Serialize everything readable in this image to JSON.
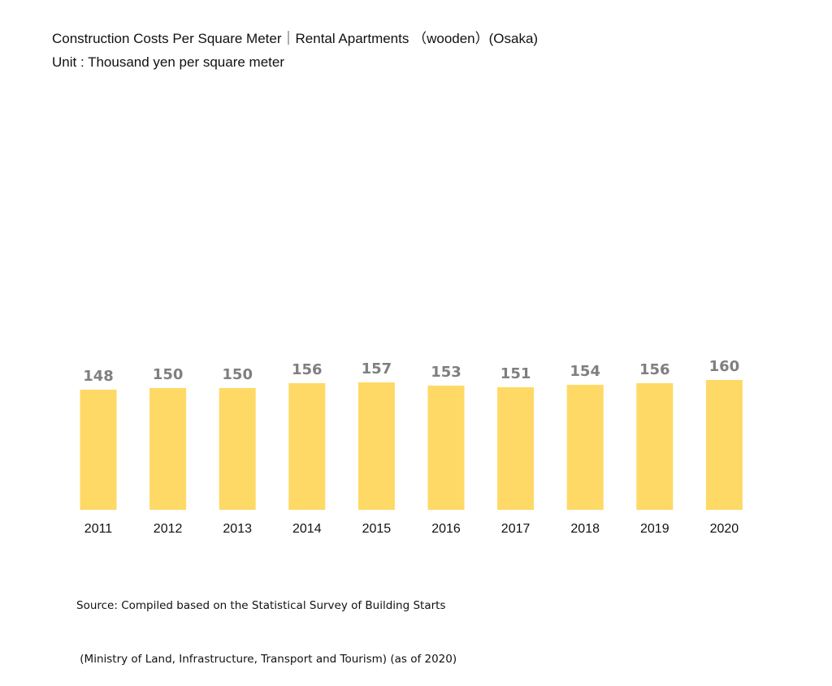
{
  "chart_data": {
    "type": "bar",
    "title": "Construction Costs Per Square Meter｜Rental Apartments （wooden）(Osaka)",
    "subtitle": "Unit : Thousand yen per square meter",
    "categories": [
      "2011",
      "2012",
      "2013",
      "2014",
      "2015",
      "2016",
      "2017",
      "2018",
      "2019",
      "2020"
    ],
    "values": [
      148,
      150,
      150,
      156,
      157,
      153,
      151,
      154,
      156,
      160
    ],
    "bar_color": "#FFD966",
    "label_color": "#7F7F7F",
    "ylim": [
      0,
      170
    ],
    "grid": false,
    "source_lines": [
      "Source: Compiled based on the Statistical Survey of Building Starts",
      " (Ministry of Land, Infrastructure, Transport and Tourism) (as of 2020)"
    ]
  }
}
